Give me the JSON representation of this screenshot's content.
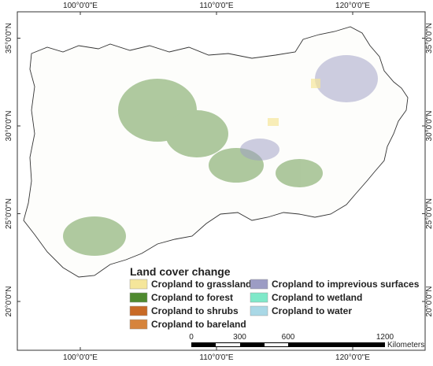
{
  "map": {
    "longitudes": [
      {
        "value": 100,
        "label": "100°0'0\"E"
      },
      {
        "value": 110,
        "label": "110°0'0\"E"
      },
      {
        "value": 120,
        "label": "120°0'0\"E"
      }
    ],
    "latitudes": [
      {
        "value": 35,
        "label": "35°0'0\"N"
      },
      {
        "value": 30,
        "label": "30°0'0\"N"
      },
      {
        "value": 25,
        "label": "25°0'0\"N"
      },
      {
        "value": 20,
        "label": "20°0'0\"N"
      }
    ],
    "legend": {
      "title": "Land cover change",
      "items": [
        {
          "label": "Cropland to grassland",
          "color": "#f5e69a"
        },
        {
          "label": "Cropland to forest",
          "color": "#4f8a2f"
        },
        {
          "label": "Cropland to shrubs",
          "color": "#c86a26"
        },
        {
          "label": "Cropland to bareland",
          "color": "#d6843c"
        },
        {
          "label": "Cropland to imprevious surfaces",
          "color": "#9c9cc4"
        },
        {
          "label": "Cropland to wetland",
          "color": "#7fe9c9"
        },
        {
          "label": "Cropland to water",
          "color": "#a9d8e6"
        }
      ]
    },
    "scale_bar": {
      "ticks": [
        0,
        300,
        600,
        1200
      ],
      "unit": "Kilometers"
    }
  }
}
